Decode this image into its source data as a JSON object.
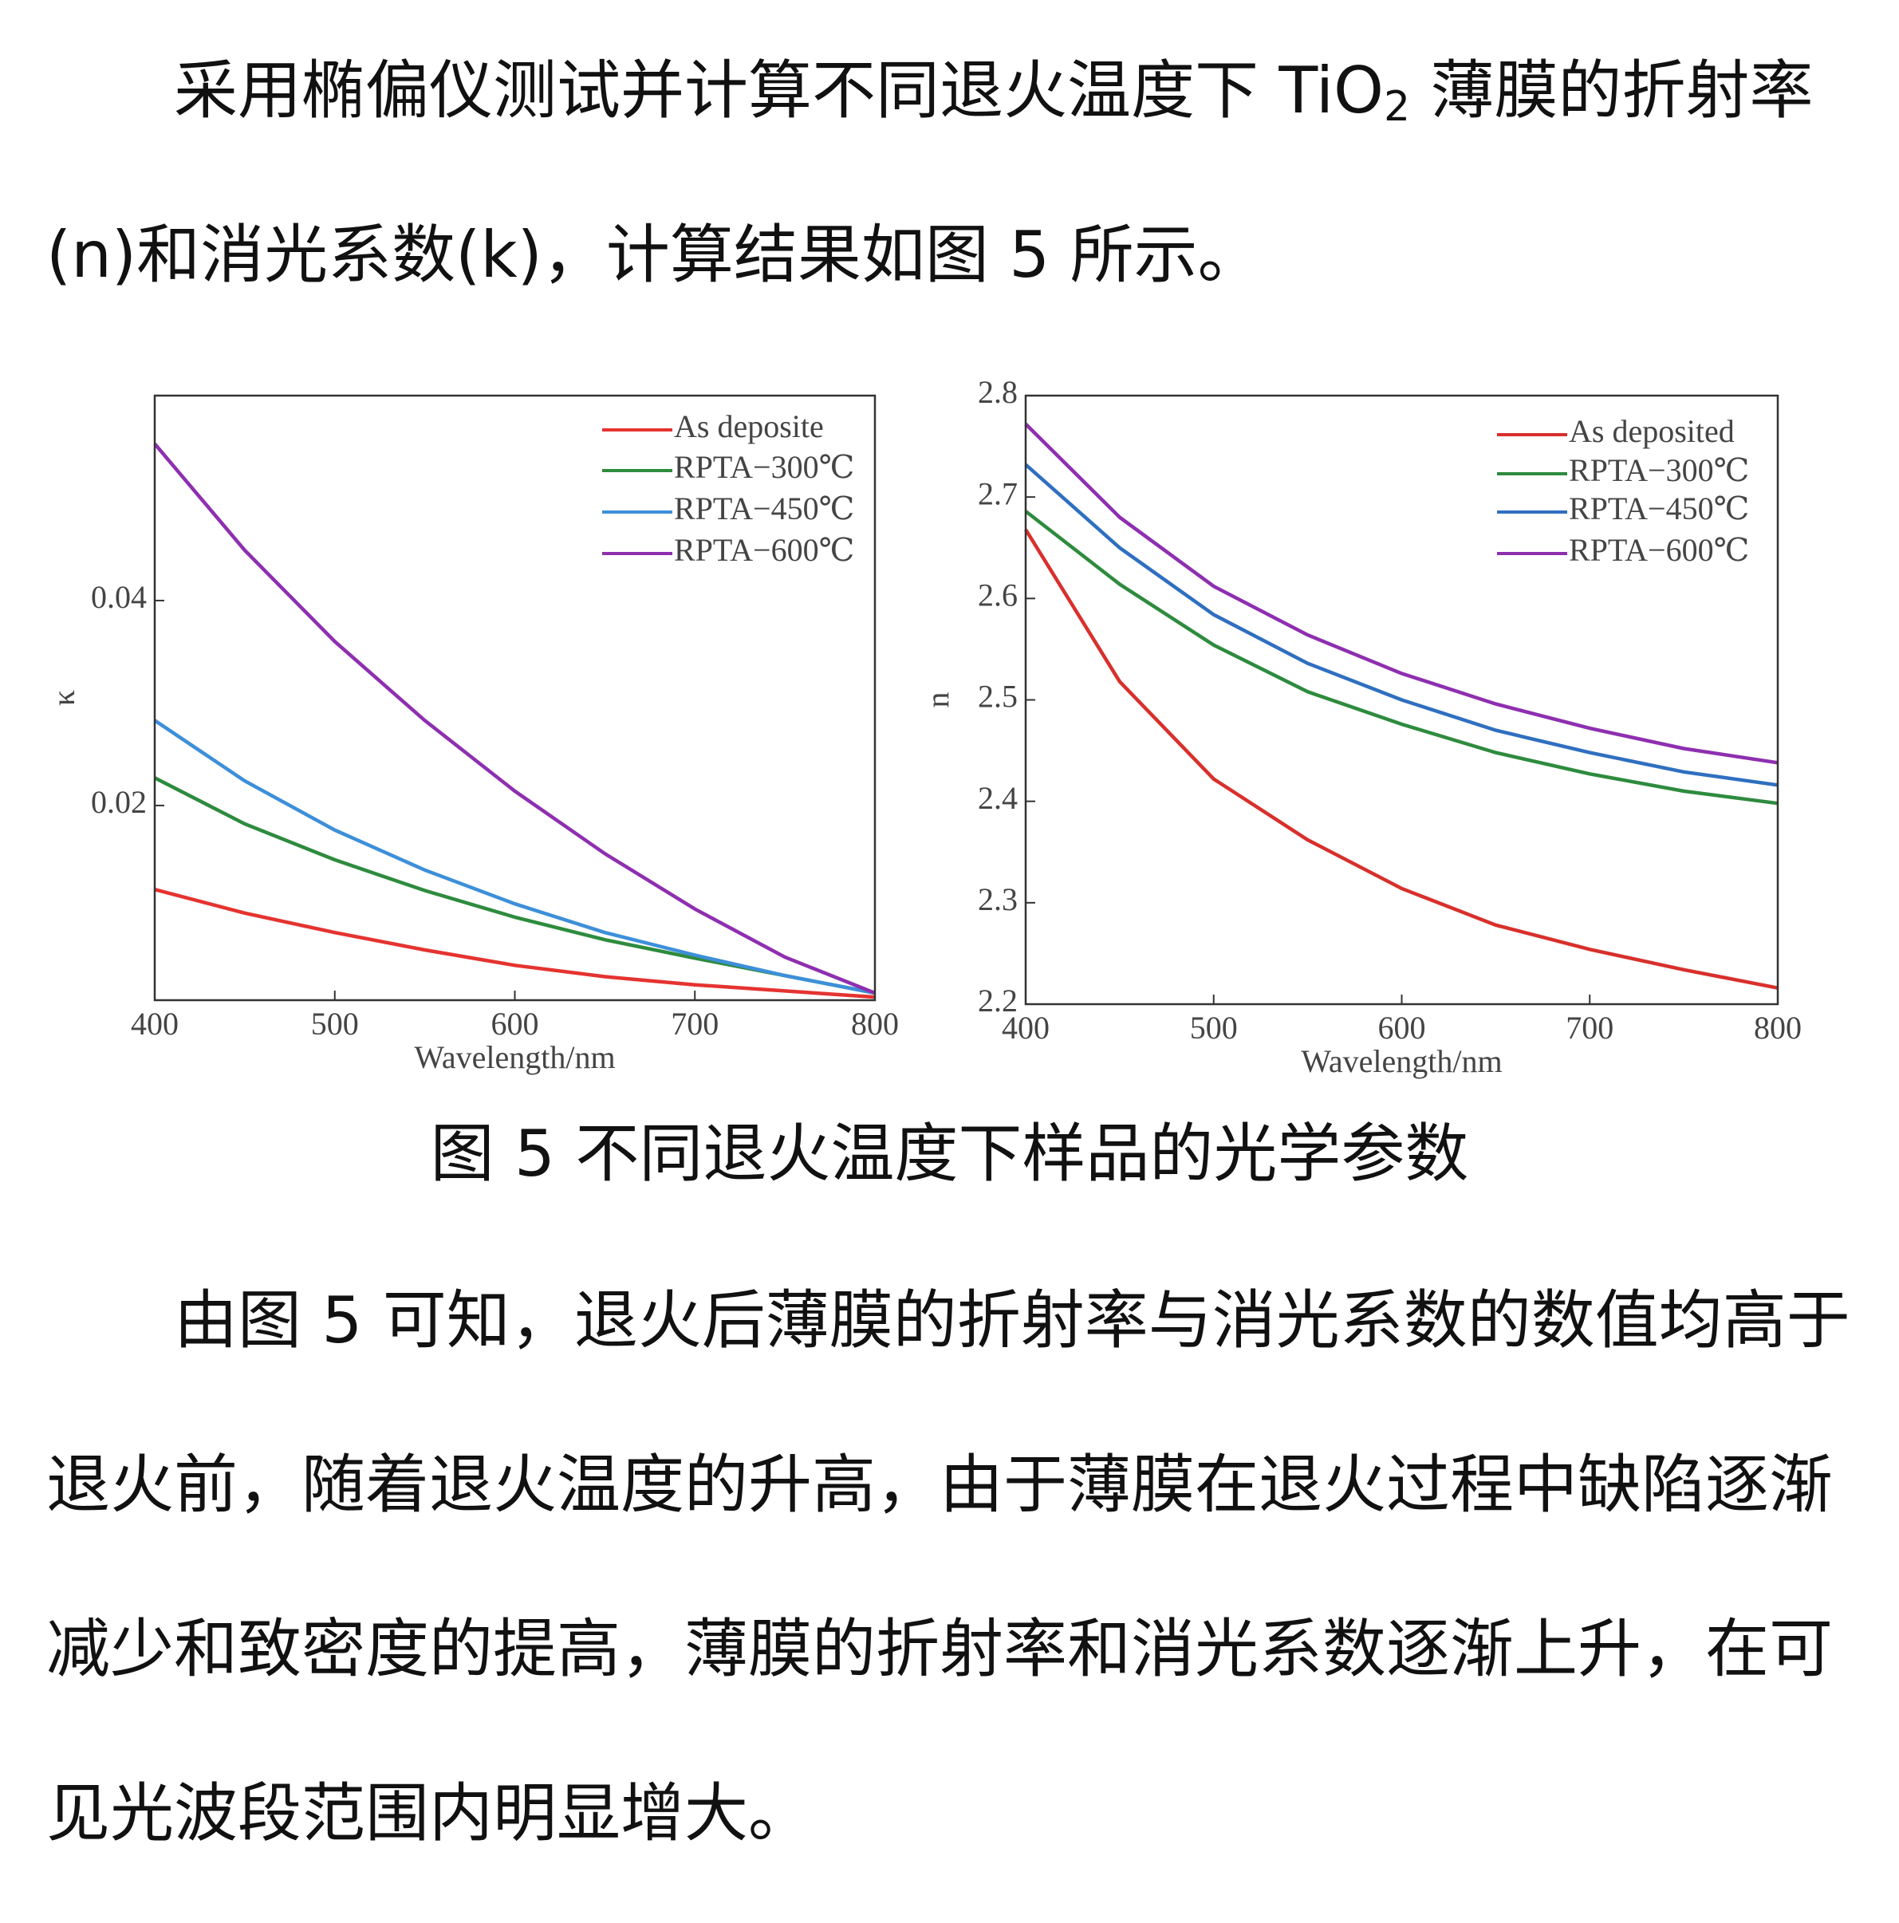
{
  "paragraph1": {
    "before": "采用椭偏仪测试并计算不同退火温度下 TiO",
    "sub": "2",
    "after": " 薄膜的折射率(n)和消光系数(k)，计算结果如图 5 所示。"
  },
  "caption": "图 5 不同退火温度下样品的光学参数",
  "paragraph2": "由图 5 可知，退火后薄膜的折射率与消光系数的数值均高于退火前，随着退火温度的升高，由于薄膜在退火过程中缺陷逐渐减少和致密度的提高，薄膜的折射率和消光系数逐渐上升，在可见光波段范围内明显增大。",
  "chart_data": [
    {
      "type": "line",
      "x_label": "Wavelength/nm",
      "y_label": "κ",
      "x": [
        400,
        450,
        500,
        550,
        600,
        650,
        700,
        750,
        800
      ],
      "xlim": [
        400,
        800
      ],
      "xticks": [
        400,
        500,
        600,
        700,
        800
      ],
      "ylim": [
        0.001,
        0.06
      ],
      "yticks": [
        0.02,
        0.04
      ],
      "legend": "upper right",
      "series": [
        {
          "name": "As deposite",
          "color": "#e53330",
          "values": [
            0.0118,
            0.0095,
            0.0076,
            0.0059,
            0.0044,
            0.0033,
            0.0025,
            0.0019,
            0.0013
          ]
        },
        {
          "name": "RPTA−300℃",
          "color": "#2e8b3e",
          "values": [
            0.0227,
            0.0182,
            0.0147,
            0.0117,
            0.0091,
            0.0069,
            0.0051,
            0.0034,
            0.0017
          ]
        },
        {
          "name": "RPTA−450℃",
          "color": "#3d8fd9",
          "values": [
            0.0283,
            0.0224,
            0.0176,
            0.0137,
            0.0104,
            0.0076,
            0.0054,
            0.0034,
            0.0017
          ]
        },
        {
          "name": "RPTA−600℃",
          "color": "#8e2fb0",
          "values": [
            0.0553,
            0.0449,
            0.036,
            0.0283,
            0.0214,
            0.0153,
            0.0099,
            0.0052,
            0.0017
          ]
        }
      ]
    },
    {
      "type": "line",
      "x_label": "Wavelength/nm",
      "y_label": "n",
      "x": [
        400,
        450,
        500,
        550,
        600,
        650,
        700,
        750,
        800
      ],
      "xlim": [
        400,
        800
      ],
      "xticks": [
        400,
        500,
        600,
        700,
        800
      ],
      "ylim": [
        2.2,
        2.8
      ],
      "yticks": [
        2.2,
        2.3,
        2.4,
        2.5,
        2.6,
        2.7,
        2.8
      ],
      "legend": "upper right",
      "series": [
        {
          "name": "As deposited",
          "color": "#d8302c",
          "values": [
            2.668,
            2.518,
            2.422,
            2.362,
            2.314,
            2.278,
            2.254,
            2.234,
            2.216
          ]
        },
        {
          "name": "RPTA−300℃",
          "color": "#2e8b3e",
          "values": [
            2.686,
            2.614,
            2.554,
            2.508,
            2.476,
            2.448,
            2.427,
            2.41,
            2.398
          ]
        },
        {
          "name": "RPTA−450℃",
          "color": "#2f6fc0",
          "values": [
            2.732,
            2.65,
            2.584,
            2.536,
            2.5,
            2.47,
            2.448,
            2.429,
            2.416
          ]
        },
        {
          "name": "RPTA−600℃",
          "color": "#8e2fb0",
          "values": [
            2.772,
            2.68,
            2.612,
            2.564,
            2.526,
            2.496,
            2.472,
            2.452,
            2.438
          ]
        }
      ]
    }
  ]
}
